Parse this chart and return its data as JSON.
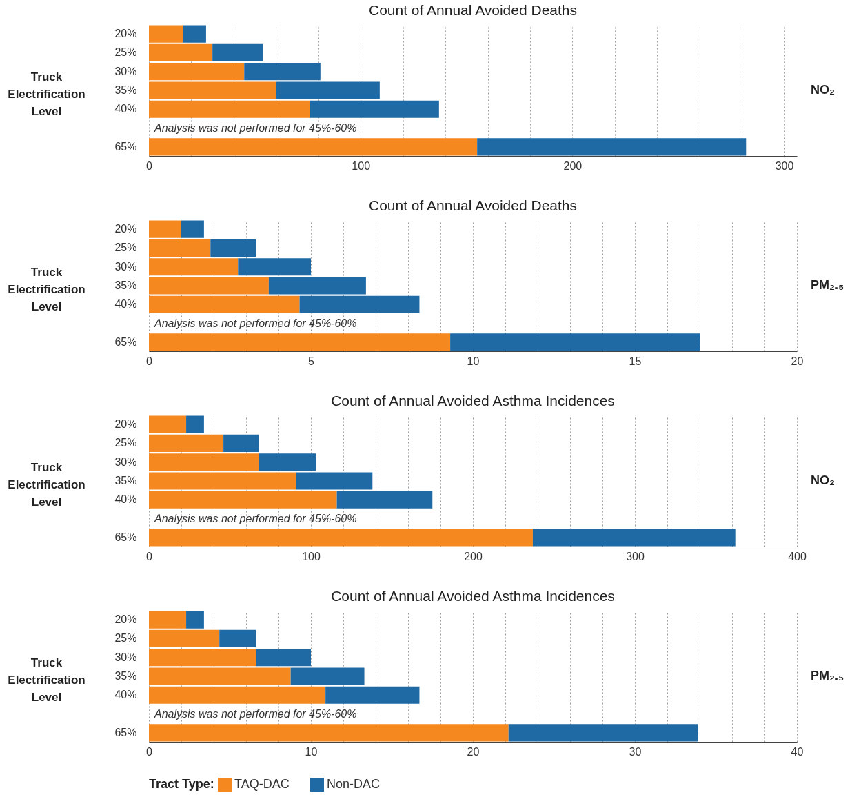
{
  "chart_data": [
    {
      "type": "bar",
      "orientation": "horizontal",
      "stacked": true,
      "title": "Count of Annual Avoided Deaths",
      "ylabel": "Truck Electrification Level",
      "y2label": "NO₂",
      "categories": [
        "20%",
        "25%",
        "30%",
        "35%",
        "40%",
        null,
        "65%"
      ],
      "series": [
        {
          "color": "#f5891f",
          "values": [
            16,
            30,
            45,
            60,
            76,
            null,
            155
          ]
        },
        {
          "color": "#1f6aa5",
          "values": [
            11,
            24,
            36,
            49,
            61,
            null,
            127
          ]
        }
      ],
      "xlim": [
        0,
        306
      ],
      "xticks": [
        0,
        {
          "value": 20,
          "label": null
        },
        {
          "value": 40,
          "label": null
        },
        {
          "value": 60,
          "label": null
        },
        {
          "value": 80,
          "label": null
        },
        100,
        {
          "value": 120,
          "label": null
        },
        {
          "value": 140,
          "label": null
        },
        {
          "value": 160,
          "label": null
        },
        {
          "value": 180,
          "label": null
        },
        200,
        {
          "value": 220,
          "label": null
        },
        {
          "value": 240,
          "label": null
        },
        {
          "value": 260,
          "label": null
        },
        {
          "value": 280,
          "label": null
        },
        300
      ],
      "grid": "x",
      "legend": false,
      "annotations": [
        "Analysis was not performed for 45%-60%"
      ]
    },
    {
      "type": "bar",
      "orientation": "horizontal",
      "stacked": true,
      "title": "Count of Annual Avoided Deaths",
      "ylabel": "Truck Electrification Level",
      "y2label": "PM₂.₅",
      "categories": [
        "20%",
        "25%",
        "30%",
        "35%",
        "40%",
        null,
        "65%"
      ],
      "series": [
        {
          "color": "#f5891f",
          "values": [
            1.0,
            1.9,
            2.75,
            3.7,
            4.65,
            null,
            9.3
          ]
        },
        {
          "color": "#1f6aa5",
          "values": [
            0.7,
            1.4,
            2.25,
            3.0,
            3.7,
            null,
            7.7
          ]
        }
      ],
      "xlim": [
        0,
        20
      ],
      "xticks": [
        0,
        {
          "value": 1,
          "label": null
        },
        {
          "value": 2,
          "label": null
        },
        {
          "value": 3,
          "label": null
        },
        {
          "value": 4,
          "label": null
        },
        5,
        {
          "value": 6,
          "label": null
        },
        {
          "value": 7,
          "label": null
        },
        {
          "value": 8,
          "label": null
        },
        {
          "value": 9,
          "label": null
        },
        10,
        {
          "value": 11,
          "label": null
        },
        {
          "value": 12,
          "label": null
        },
        {
          "value": 13,
          "label": null
        },
        {
          "value": 14,
          "label": null
        },
        15,
        {
          "value": 16,
          "label": null
        },
        {
          "value": 17,
          "label": null
        },
        {
          "value": 18,
          "label": null
        },
        {
          "value": 19,
          "label": null
        },
        20
      ],
      "grid": "x",
      "legend": false,
      "annotations": [
        "Analysis was not performed for 45%-60%"
      ]
    },
    {
      "type": "bar",
      "orientation": "horizontal",
      "stacked": true,
      "title": "Count of Annual Avoided Asthma Incidences",
      "ylabel": "Truck Electrification Level",
      "y2label": "NO₂",
      "categories": [
        "20%",
        "25%",
        "30%",
        "35%",
        "40%",
        null,
        "65%"
      ],
      "series": [
        {
          "color": "#f5891f",
          "values": [
            23,
            46,
            68,
            91,
            116,
            null,
            237
          ]
        },
        {
          "color": "#1f6aa5",
          "values": [
            11,
            22,
            35,
            47,
            59,
            null,
            125
          ]
        }
      ],
      "xlim": [
        0,
        400
      ],
      "xticks": [
        0,
        {
          "value": 20,
          "label": null
        },
        {
          "value": 40,
          "label": null
        },
        {
          "value": 60,
          "label": null
        },
        {
          "value": 80,
          "label": null
        },
        100,
        {
          "value": 120,
          "label": null
        },
        {
          "value": 140,
          "label": null
        },
        {
          "value": 160,
          "label": null
        },
        {
          "value": 180,
          "label": null
        },
        200,
        {
          "value": 220,
          "label": null
        },
        {
          "value": 240,
          "label": null
        },
        {
          "value": 260,
          "label": null
        },
        {
          "value": 280,
          "label": null
        },
        300,
        {
          "value": 320,
          "label": null
        },
        {
          "value": 340,
          "label": null
        },
        {
          "value": 360,
          "label": null
        },
        {
          "value": 380,
          "label": null
        },
        400
      ],
      "grid": "x",
      "legend": false,
      "annotations": [
        "Analysis was not performed for 45%-60%"
      ]
    },
    {
      "type": "bar",
      "orientation": "horizontal",
      "stacked": true,
      "title": "Count of Annual Avoided Asthma Incidences",
      "ylabel": "Truck Electrification Level",
      "y2label": "PM₂.₅",
      "categories": [
        "20%",
        "25%",
        "30%",
        "35%",
        "40%",
        null,
        "65%"
      ],
      "series": [
        {
          "name": "TAQ-DAC",
          "color": "#f5891f",
          "values": [
            2.3,
            4.35,
            6.6,
            8.75,
            10.9,
            null,
            22.2
          ]
        },
        {
          "name": "Non-DAC",
          "color": "#1f6aa5",
          "values": [
            1.1,
            2.25,
            3.4,
            4.55,
            5.8,
            null,
            11.7
          ]
        }
      ],
      "xlim": [
        0,
        40
      ],
      "xticks": [
        0,
        {
          "value": 2,
          "label": null
        },
        {
          "value": 4,
          "label": null
        },
        {
          "value": 6,
          "label": null
        },
        {
          "value": 8,
          "label": null
        },
        10,
        {
          "value": 12,
          "label": null
        },
        {
          "value": 14,
          "label": null
        },
        {
          "value": 16,
          "label": null
        },
        {
          "value": 18,
          "label": null
        },
        20,
        {
          "value": 22,
          "label": null
        },
        {
          "value": 24,
          "label": null
        },
        {
          "value": 26,
          "label": null
        },
        {
          "value": 28,
          "label": null
        },
        30,
        {
          "value": 32,
          "label": null
        },
        {
          "value": 34,
          "label": null
        },
        {
          "value": 36,
          "label": null
        },
        {
          "value": 38,
          "label": null
        },
        40
      ],
      "grid": "x",
      "legend": "bottom",
      "legend_title": "Tract Type:",
      "annotations": [
        "Analysis was not performed for 45%-60%"
      ]
    }
  ]
}
